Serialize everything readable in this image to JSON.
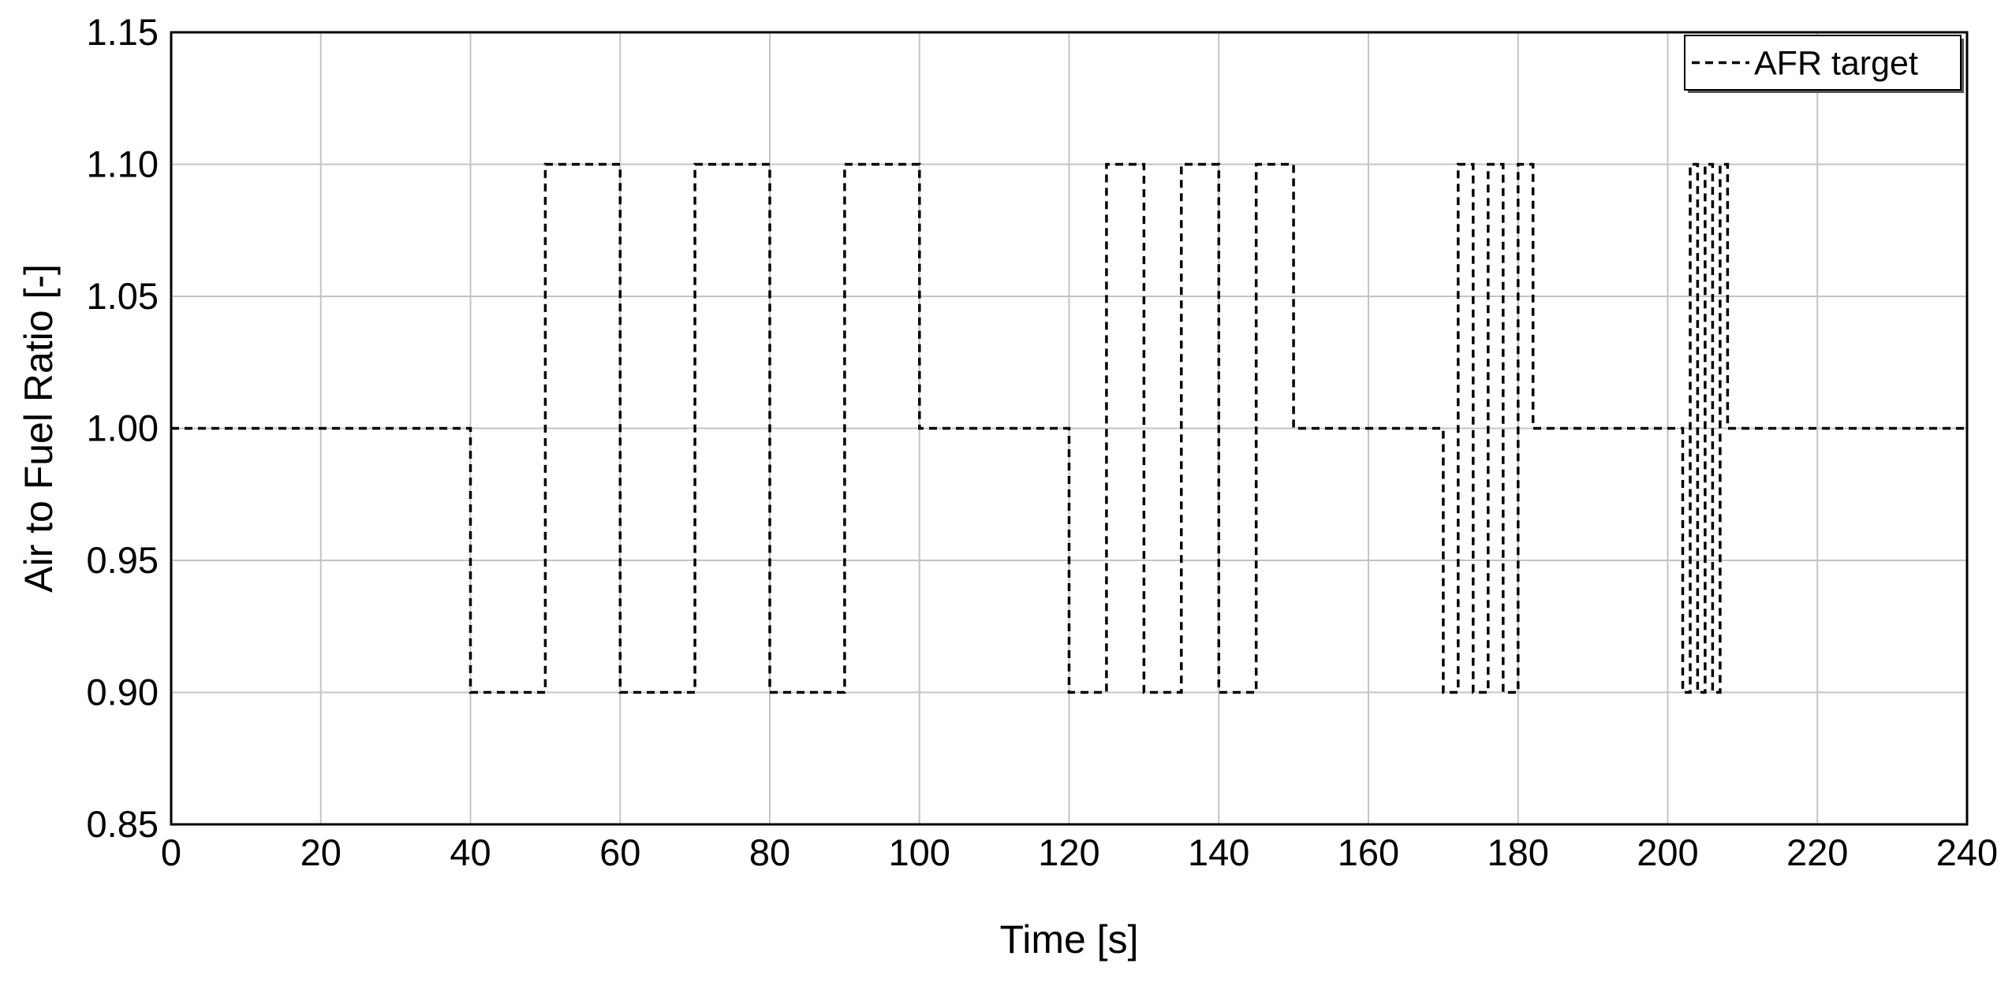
{
  "chart_data": {
    "type": "line",
    "xlabel": "Time [s]",
    "ylabel": "Air to Fuel Ratio [-]",
    "xlim": [
      0,
      240
    ],
    "ylim": [
      0.85,
      1.15
    ],
    "xticks": [
      0,
      20,
      40,
      60,
      80,
      100,
      120,
      140,
      160,
      180,
      200,
      220,
      240
    ],
    "yticks": [
      0.85,
      0.9,
      0.95,
      1.0,
      1.05,
      1.1,
      1.15
    ],
    "ytick_labels": [
      "0.85",
      "0.90",
      "0.95",
      "1.00",
      "1.05",
      "1.10",
      "1.15"
    ],
    "grid": true,
    "legend_position": "top-right",
    "series": [
      {
        "name": "AFR target",
        "color": "#000000",
        "line_style": "dashed",
        "x": [
          0,
          40,
          40,
          50,
          50,
          60,
          60,
          70,
          70,
          80,
          80,
          90,
          90,
          100,
          100,
          120,
          120,
          125,
          125,
          130,
          130,
          135,
          135,
          140,
          140,
          145,
          145,
          150,
          150,
          170,
          170,
          172,
          172,
          174,
          174,
          176,
          176,
          178,
          178,
          180,
          180,
          182,
          182,
          202,
          202,
          203,
          203,
          204,
          204,
          205,
          205,
          206,
          206,
          207,
          207,
          208,
          208,
          240
        ],
        "y": [
          1.0,
          1.0,
          0.9,
          0.9,
          1.1,
          1.1,
          0.9,
          0.9,
          1.1,
          1.1,
          0.9,
          0.9,
          1.1,
          1.1,
          1.0,
          1.0,
          0.9,
          0.9,
          1.1,
          1.1,
          0.9,
          0.9,
          1.1,
          1.1,
          0.9,
          0.9,
          1.1,
          1.1,
          1.0,
          1.0,
          0.9,
          0.9,
          1.1,
          1.1,
          0.9,
          0.9,
          1.1,
          1.1,
          0.9,
          0.9,
          1.1,
          1.1,
          1.0,
          1.0,
          0.9,
          0.9,
          1.1,
          1.1,
          0.9,
          0.9,
          1.1,
          1.1,
          0.9,
          0.9,
          1.1,
          1.1,
          1.0,
          1.0
        ]
      }
    ]
  }
}
